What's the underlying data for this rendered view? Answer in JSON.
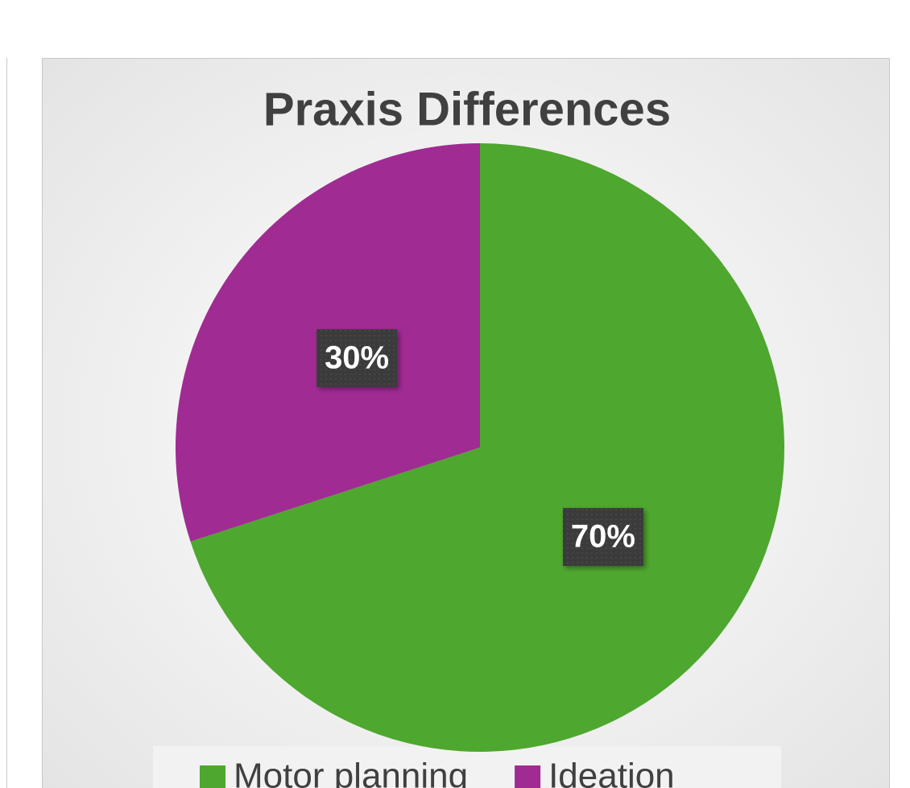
{
  "chart_data": {
    "type": "pie",
    "title": "Praxis Differences",
    "categories": [
      "Motor planning",
      "Ideation"
    ],
    "values": [
      70,
      30
    ],
    "value_labels": [
      "70%",
      "30%"
    ],
    "colors": [
      "#4ea72e",
      "#a02b93"
    ],
    "legend": "bottom"
  }
}
